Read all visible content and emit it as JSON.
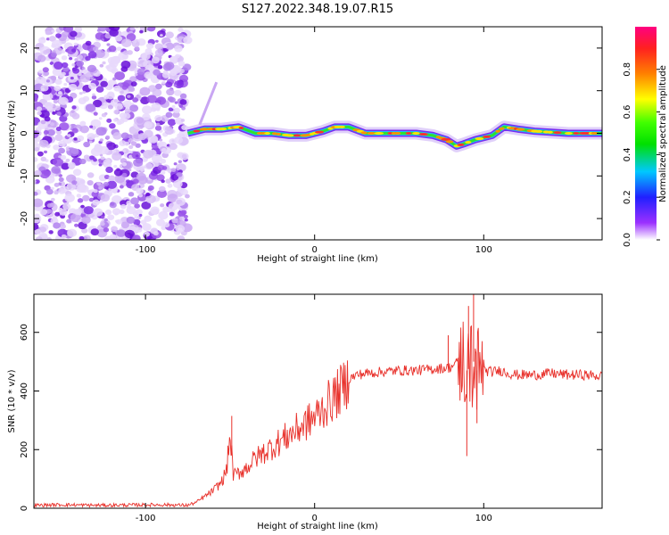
{
  "title": "S127.2022.348.19.07.R15",
  "chart_data": [
    {
      "type": "heatmap",
      "xlabel": "Height of straight line (km)",
      "ylabel": "Frequency (Hz)",
      "xlim": [
        -166,
        170
      ],
      "ylim": [
        -25,
        25
      ],
      "xticks": [
        -100,
        0,
        100
      ],
      "yticks": [
        -20,
        -10,
        0,
        10,
        20
      ],
      "noise_region_x": [
        -166,
        -75
      ],
      "signal_track": {
        "x": [
          -75,
          -65,
          -55,
          -45,
          -35,
          -25,
          -15,
          -5,
          5,
          12,
          20,
          30,
          50,
          60,
          70,
          78,
          84,
          88,
          95,
          105,
          112,
          120,
          130,
          150,
          170
        ],
        "y": [
          0,
          1,
          1,
          1.5,
          0,
          0,
          -0.5,
          -0.5,
          0.5,
          1.5,
          1.5,
          0,
          0,
          0,
          -0.5,
          -1.5,
          -3,
          -2.5,
          -1.5,
          -0.5,
          1.5,
          1,
          0.5,
          0,
          0
        ]
      },
      "colorbar": {
        "label": "Normalized spectral amplitude",
        "range": [
          0,
          1
        ],
        "ticks": [
          "0.0",
          "0.2",
          "0.4",
          "0.6",
          "0.8"
        ]
      }
    },
    {
      "type": "line",
      "xlabel": "Height of straight line (km)",
      "ylabel": "SNR (10 * v/v)",
      "xlim": [
        -166,
        170
      ],
      "ylim": [
        0,
        730
      ],
      "xticks": [
        -100,
        0,
        100
      ],
      "yticks": [
        0,
        200,
        400,
        600
      ],
      "color": "#e8302a",
      "series": [
        {
          "x": [
            -166,
            -150,
            -130,
            -110,
            -90,
            -75,
            -70,
            -65,
            -60,
            -55,
            -52,
            -50,
            -48,
            -45,
            -40,
            -35,
            -30,
            -25,
            -20,
            -15,
            -10,
            -5,
            0,
            5,
            10,
            15,
            20,
            25,
            30,
            40,
            50,
            60,
            70,
            80,
            85,
            88,
            90,
            92,
            94,
            96,
            98,
            100,
            105,
            110,
            115,
            120,
            130,
            140,
            150,
            160,
            170
          ],
          "y": [
            10,
            12,
            10,
            11,
            12,
            10,
            20,
            40,
            60,
            90,
            130,
            250,
            110,
            120,
            140,
            170,
            190,
            210,
            230,
            250,
            270,
            290,
            310,
            340,
            370,
            400,
            440,
            455,
            460,
            465,
            470,
            470,
            475,
            480,
            500,
            510,
            470,
            480,
            500,
            470,
            480,
            470,
            465,
            470,
            460,
            455,
            455,
            460,
            455,
            455,
            450
          ]
        }
      ],
      "spikes": [
        {
          "x": -49,
          "y": 315
        },
        {
          "x": 90,
          "y": 178
        },
        {
          "x": 91,
          "y": 690
        },
        {
          "x": 94,
          "y": 730
        },
        {
          "x": 96,
          "y": 290
        },
        {
          "x": 79,
          "y": 590
        }
      ]
    }
  ]
}
